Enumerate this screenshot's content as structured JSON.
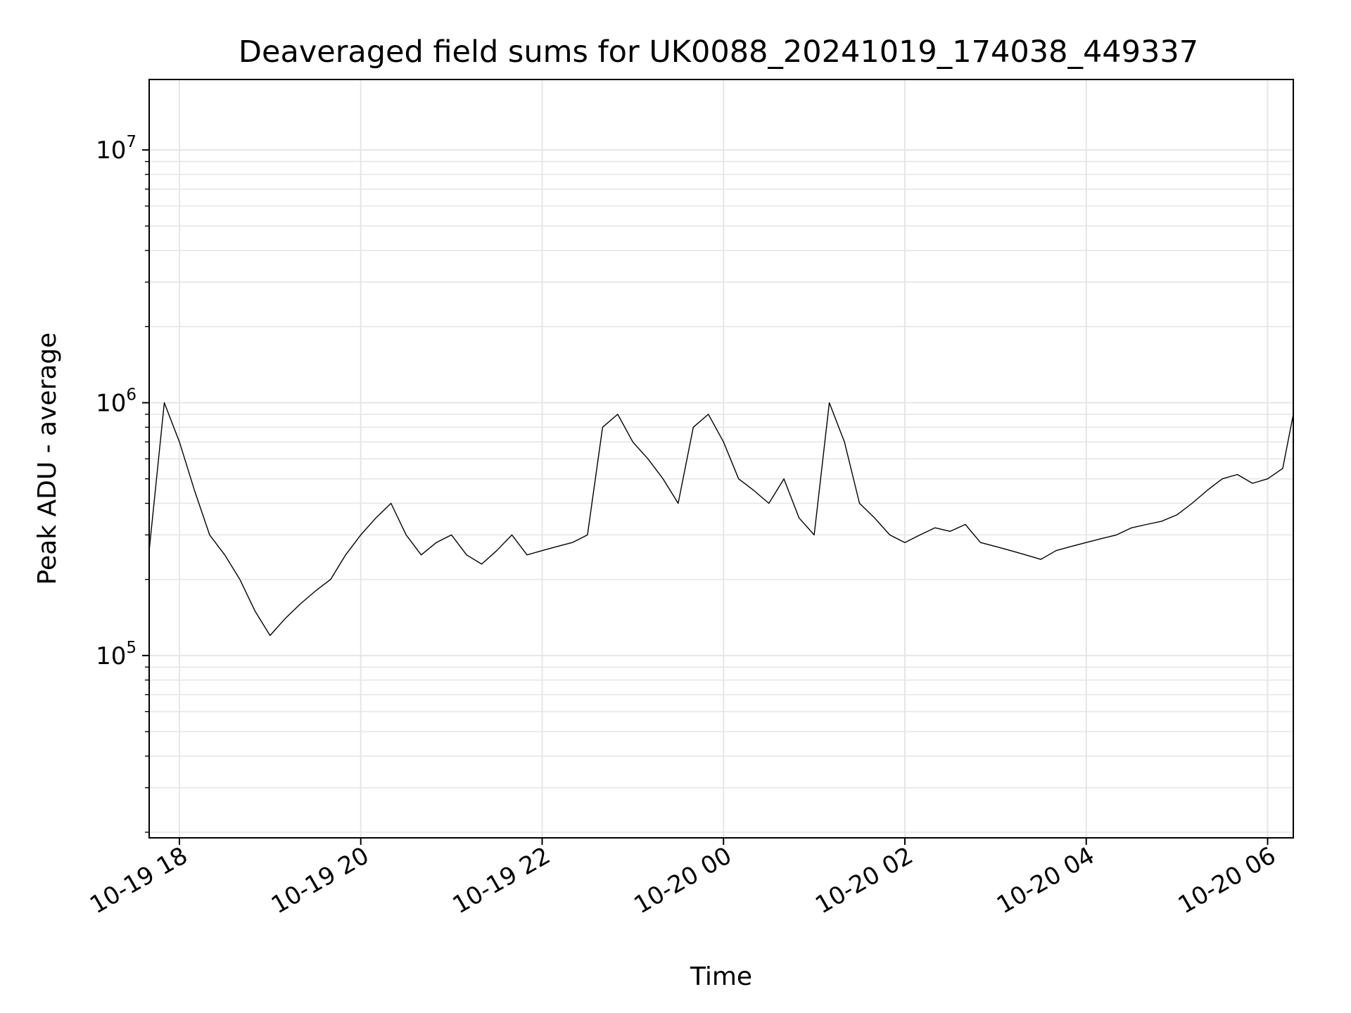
{
  "chart_data": {
    "type": "line",
    "title": "Deaveraged field sums for UK0088_20241019_174038_449337",
    "xlabel": "Time",
    "ylabel": "Peak ADU - average",
    "x_scale": "time",
    "y_scale": "log",
    "xlim": [
      "2024-10-19 17:40",
      "2024-10-20 06:17"
    ],
    "ylim": [
      19000,
      19000000
    ],
    "grid": true,
    "legend": "none",
    "line_color": "#000000",
    "x_ticks": [
      {
        "value": "2024-10-19 18:00",
        "label": "10-19 18"
      },
      {
        "value": "2024-10-19 20:00",
        "label": "10-19 20"
      },
      {
        "value": "2024-10-19 22:00",
        "label": "10-19 22"
      },
      {
        "value": "2024-10-20 00:00",
        "label": "10-20 00"
      },
      {
        "value": "2024-10-20 02:00",
        "label": "10-20 02"
      },
      {
        "value": "2024-10-20 04:00",
        "label": "10-20 04"
      },
      {
        "value": "2024-10-20 06:00",
        "label": "10-20 06"
      }
    ],
    "y_ticks": [
      {
        "value": 100000,
        "base": "10",
        "exp": "5"
      },
      {
        "value": 1000000,
        "base": "10",
        "exp": "6"
      },
      {
        "value": 10000000,
        "base": "10",
        "exp": "7"
      }
    ],
    "series": [
      {
        "x": [
          "2024-10-19 17:40",
          "2024-10-19 17:50",
          "2024-10-19 18:00",
          "2024-10-19 18:10",
          "2024-10-19 18:20",
          "2024-10-19 18:30",
          "2024-10-19 18:40",
          "2024-10-19 18:50",
          "2024-10-19 19:00",
          "2024-10-19 19:10",
          "2024-10-19 19:20",
          "2024-10-19 19:30",
          "2024-10-19 19:40",
          "2024-10-19 19:50",
          "2024-10-19 20:00",
          "2024-10-19 20:10",
          "2024-10-19 20:20",
          "2024-10-19 20:30",
          "2024-10-19 20:40",
          "2024-10-19 20:50",
          "2024-10-19 21:00",
          "2024-10-19 21:10",
          "2024-10-19 21:20",
          "2024-10-19 21:30",
          "2024-10-19 21:40",
          "2024-10-19 21:50",
          "2024-10-19 22:00",
          "2024-10-19 22:10",
          "2024-10-19 22:20",
          "2024-10-19 22:30",
          "2024-10-19 22:40",
          "2024-10-19 22:50",
          "2024-10-19 23:00",
          "2024-10-19 23:10",
          "2024-10-19 23:20",
          "2024-10-19 23:30",
          "2024-10-19 23:40",
          "2024-10-19 23:50",
          "2024-10-20 00:00",
          "2024-10-20 00:10",
          "2024-10-20 00:20",
          "2024-10-20 00:30",
          "2024-10-20 00:40",
          "2024-10-20 00:50",
          "2024-10-20 01:00",
          "2024-10-20 01:10",
          "2024-10-20 01:20",
          "2024-10-20 01:30",
          "2024-10-20 01:40",
          "2024-10-20 01:50",
          "2024-10-20 02:00",
          "2024-10-20 02:10",
          "2024-10-20 02:20",
          "2024-10-20 02:30",
          "2024-10-20 02:40",
          "2024-10-20 02:50",
          "2024-10-20 03:00",
          "2024-10-20 03:10",
          "2024-10-20 03:20",
          "2024-10-20 03:30",
          "2024-10-20 03:40",
          "2024-10-20 03:50",
          "2024-10-20 04:00",
          "2024-10-20 04:10",
          "2024-10-20 04:20",
          "2024-10-20 04:30",
          "2024-10-20 04:40",
          "2024-10-20 04:50",
          "2024-10-20 05:00",
          "2024-10-20 05:10",
          "2024-10-20 05:20",
          "2024-10-20 05:30",
          "2024-10-20 05:40",
          "2024-10-20 05:50",
          "2024-10-20 06:00",
          "2024-10-20 06:10",
          "2024-10-20 06:17"
        ],
        "y": [
          260000,
          1000000,
          700000,
          450000,
          300000,
          250000,
          200000,
          150000,
          120000,
          140000,
          160000,
          180000,
          200000,
          250000,
          300000,
          350000,
          400000,
          300000,
          250000,
          280000,
          300000,
          250000,
          230000,
          260000,
          300000,
          250000,
          260000,
          270000,
          280000,
          300000,
          800000,
          900000,
          700000,
          600000,
          500000,
          400000,
          800000,
          900000,
          700000,
          500000,
          450000,
          400000,
          500000,
          350000,
          300000,
          1000000,
          700000,
          400000,
          350000,
          300000,
          280000,
          300000,
          320000,
          310000,
          330000,
          280000,
          270000,
          260000,
          250000,
          240000,
          260000,
          270000,
          280000,
          290000,
          300000,
          320000,
          330000,
          340000,
          360000,
          400000,
          450000,
          500000,
          520000,
          480000,
          500000,
          550000,
          900000
        ]
      }
    ]
  }
}
